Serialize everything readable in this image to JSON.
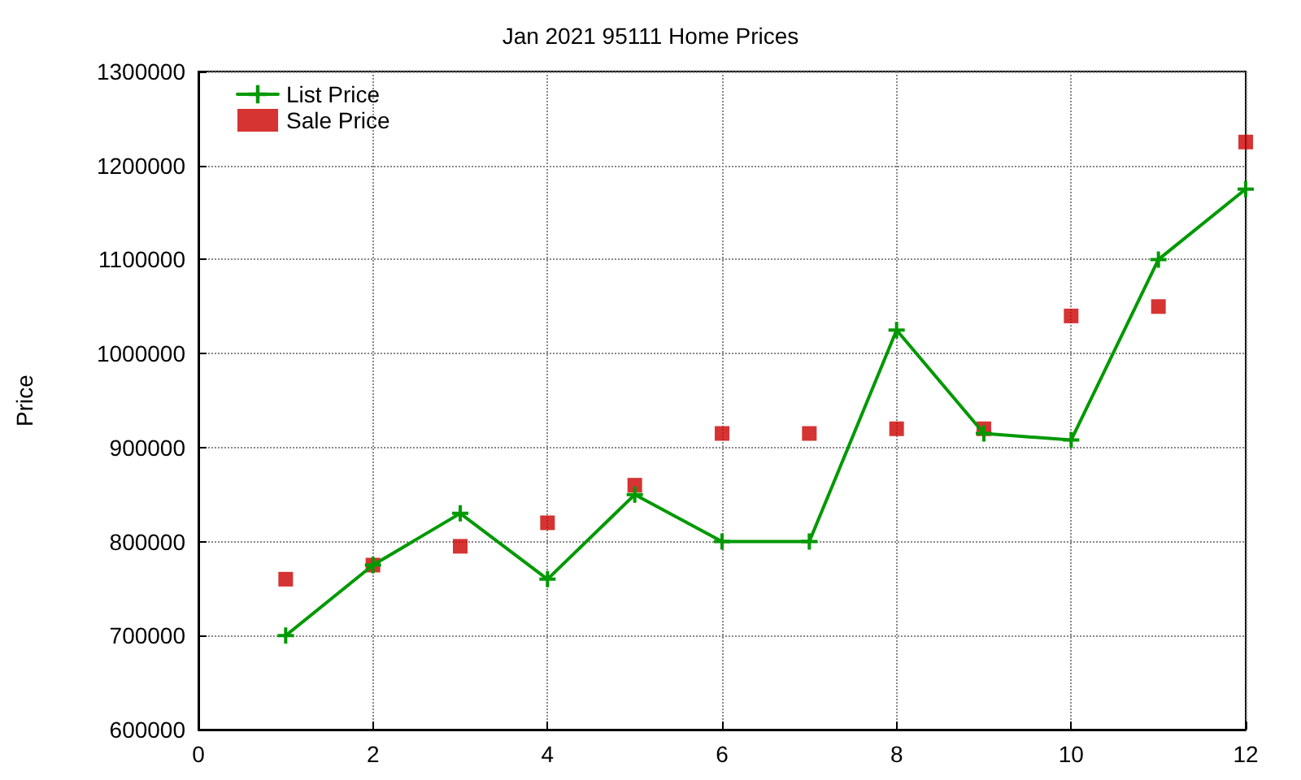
{
  "chart_data": {
    "type": "line",
    "title": "Jan 2021 95111 Home Prices",
    "ylabel": "Price",
    "x": [
      1,
      2,
      3,
      4,
      5,
      6,
      7,
      8,
      9,
      10,
      11,
      12
    ],
    "series": [
      {
        "name": "List Price",
        "color": "#009900",
        "marker": "cross",
        "line_style": "solid",
        "values": [
          700000,
          775000,
          830000,
          760000,
          850000,
          800000,
          800000,
          1025000,
          915000,
          908000,
          1100000,
          1175000
        ]
      },
      {
        "name": "Sale Price",
        "type": "scatter",
        "color": "#cc0000",
        "marker": "square",
        "values": [
          760000,
          775000,
          795000,
          820000,
          860000,
          915000,
          915000,
          920000,
          920000,
          1040000,
          1050000,
          1225000
        ]
      }
    ],
    "xlim": [
      0,
      12
    ],
    "xticks": [
      0,
      2,
      4,
      6,
      8,
      10,
      12
    ],
    "ylim": [
      600000,
      1300000
    ],
    "yticks": [
      600000,
      700000,
      800000,
      900000,
      1000000,
      1100000,
      1200000,
      1300000
    ],
    "grid": true,
    "legend": "top left"
  }
}
